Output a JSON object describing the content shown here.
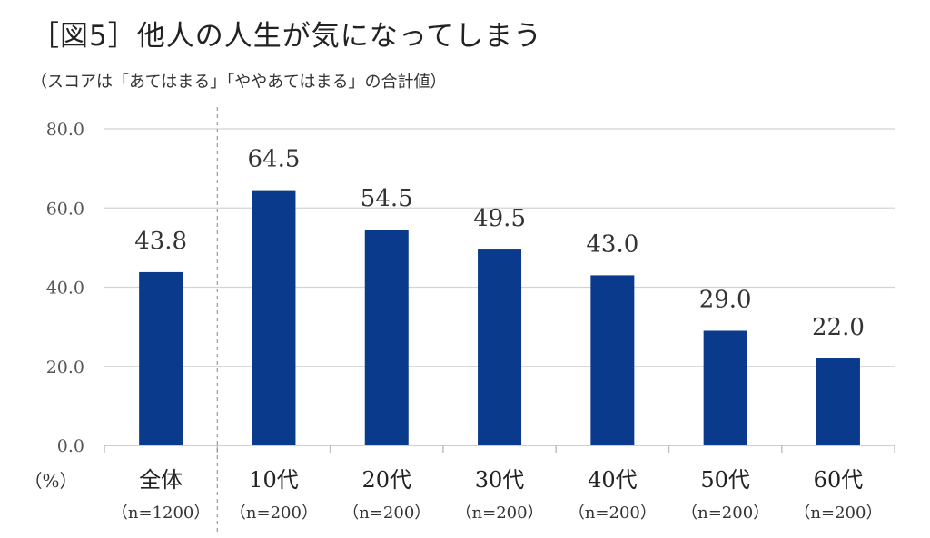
{
  "title": "［図5］他人の人生が気になってしまう",
  "subtitle": "（スコアは「あてはまる」「ややあてはまる」の合計値）",
  "chart_data": {
    "type": "bar",
    "categories": [
      "全体",
      "10代",
      "20代",
      "30代",
      "40代",
      "50代",
      "60代"
    ],
    "sample_sizes": [
      "（n=1200）",
      "（n=200）",
      "（n=200）",
      "（n=200）",
      "（n=200）",
      "（n=200）",
      "（n=200）"
    ],
    "values": [
      43.8,
      64.5,
      54.5,
      49.5,
      43.0,
      29.0,
      22.0
    ],
    "value_labels": [
      "43.8",
      "64.5",
      "54.5",
      "49.5",
      "43.0",
      "29.0",
      "22.0"
    ],
    "yticks": [
      "0.0",
      "20.0",
      "40.0",
      "60.0",
      "80.0"
    ],
    "ylim": [
      0,
      80
    ],
    "unit_label": "（%）",
    "bar_color": "#0a3a8c",
    "grid": true,
    "separator_after_first": true
  }
}
